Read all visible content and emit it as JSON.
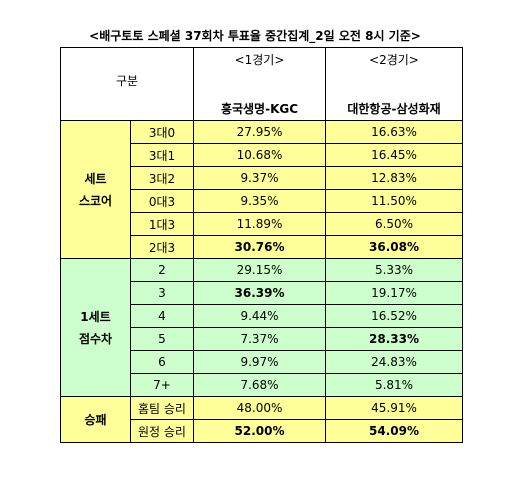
{
  "title": "<배구토토 스페셜 37회차 투표율 중간집계_2일 오전 8시 기준>",
  "table": {
    "header": {
      "label": "구분",
      "columns": [
        {
          "game": "<1경기>",
          "match": "흥국생명-KGC"
        },
        {
          "game": "<2경기>",
          "match": "대한항공-삼성화재"
        }
      ]
    },
    "groups": [
      {
        "label": [
          "세트",
          "스코어"
        ],
        "color": "#ffff99",
        "rows": [
          {
            "label": "3대0",
            "values": [
              {
                "text": "27.95%",
                "bold": false
              },
              {
                "text": "16.63%",
                "bold": false
              }
            ]
          },
          {
            "label": "3대1",
            "values": [
              {
                "text": "10.68%",
                "bold": false
              },
              {
                "text": "16.45%",
                "bold": false
              }
            ]
          },
          {
            "label": "3대2",
            "values": [
              {
                "text": "9.37%",
                "bold": false
              },
              {
                "text": "12.83%",
                "bold": false
              }
            ]
          },
          {
            "label": "0대3",
            "values": [
              {
                "text": "9.35%",
                "bold": false
              },
              {
                "text": "11.50%",
                "bold": false
              }
            ]
          },
          {
            "label": "1대3",
            "values": [
              {
                "text": "11.89%",
                "bold": false
              },
              {
                "text": "6.50%",
                "bold": false
              }
            ]
          },
          {
            "label": "2대3",
            "values": [
              {
                "text": "30.76%",
                "bold": true
              },
              {
                "text": "36.08%",
                "bold": true
              }
            ]
          }
        ]
      },
      {
        "label": [
          "1세트",
          "점수차"
        ],
        "color": "#ccffcc",
        "rows": [
          {
            "label": "2",
            "values": [
              {
                "text": "29.15%",
                "bold": false
              },
              {
                "text": "5.33%",
                "bold": false
              }
            ]
          },
          {
            "label": "3",
            "values": [
              {
                "text": "36.39%",
                "bold": true
              },
              {
                "text": "19.17%",
                "bold": false
              }
            ]
          },
          {
            "label": "4",
            "values": [
              {
                "text": "9.44%",
                "bold": false
              },
              {
                "text": "16.52%",
                "bold": false
              }
            ]
          },
          {
            "label": "5",
            "values": [
              {
                "text": "7.37%",
                "bold": false
              },
              {
                "text": "28.33%",
                "bold": true
              }
            ]
          },
          {
            "label": "6",
            "values": [
              {
                "text": "9.97%",
                "bold": false
              },
              {
                "text": "24.83%",
                "bold": false
              }
            ]
          },
          {
            "label": "7+",
            "values": [
              {
                "text": "7.68%",
                "bold": false
              },
              {
                "text": "5.81%",
                "bold": false
              }
            ]
          }
        ]
      },
      {
        "label": [
          "승패"
        ],
        "color": "#ffff99",
        "rows": [
          {
            "label": "홈팀 승리",
            "values": [
              {
                "text": "48.00%",
                "bold": false
              },
              {
                "text": "45.91%",
                "bold": false
              }
            ]
          },
          {
            "label": "원정 승리",
            "values": [
              {
                "text": "52.00%",
                "bold": true
              },
              {
                "text": "54.09%",
                "bold": true
              }
            ]
          }
        ]
      }
    ]
  }
}
